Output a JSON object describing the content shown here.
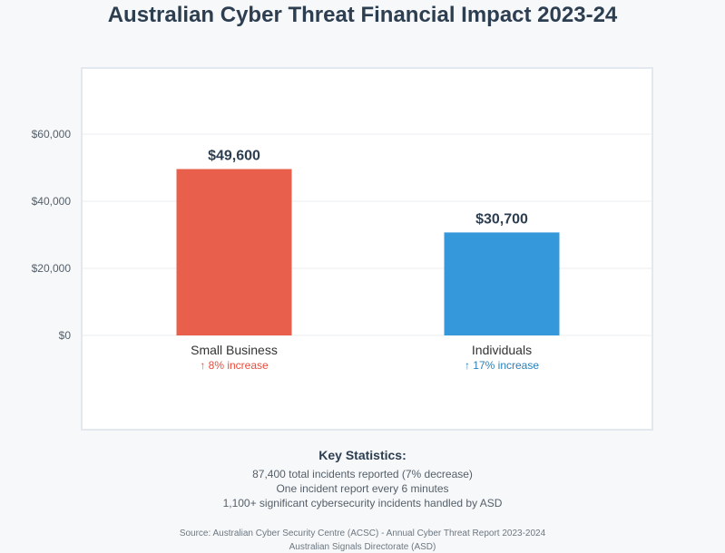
{
  "chart_data": {
    "type": "bar",
    "title": "Australian Cyber Threat Financial Impact 2023-24",
    "xlabel": "",
    "ylabel": "",
    "categories": [
      "Small Business",
      "Individuals"
    ],
    "values": [
      49600,
      30700
    ],
    "value_labels": [
      "$49,600",
      "$30,700"
    ],
    "change_labels": [
      "↑ 8% increase",
      "↑ 17% increase"
    ],
    "colors": [
      "#e8604c",
      "#3498db"
    ],
    "change_colors": [
      "#e74c3c",
      "#2980b9"
    ],
    "ylim": [
      0,
      60000
    ],
    "yticks": [
      0,
      20000,
      40000,
      60000
    ],
    "ytick_labels": [
      "$0",
      "$20,000",
      "$40,000",
      "$60,000"
    ],
    "grid": true,
    "legend": "none"
  },
  "key_statistics": {
    "heading": "Key Statistics:",
    "lines": [
      "87,400 total incidents reported (7% decrease)",
      "One incident report every 6 minutes",
      "1,100+ significant cybersecurity incidents handled by ASD"
    ]
  },
  "source": {
    "lines": [
      "Source: Australian Cyber Security Centre (ACSC) - Annual Cyber Threat Report 2023-2024",
      "Australian Signals Directorate (ASD)"
    ]
  }
}
